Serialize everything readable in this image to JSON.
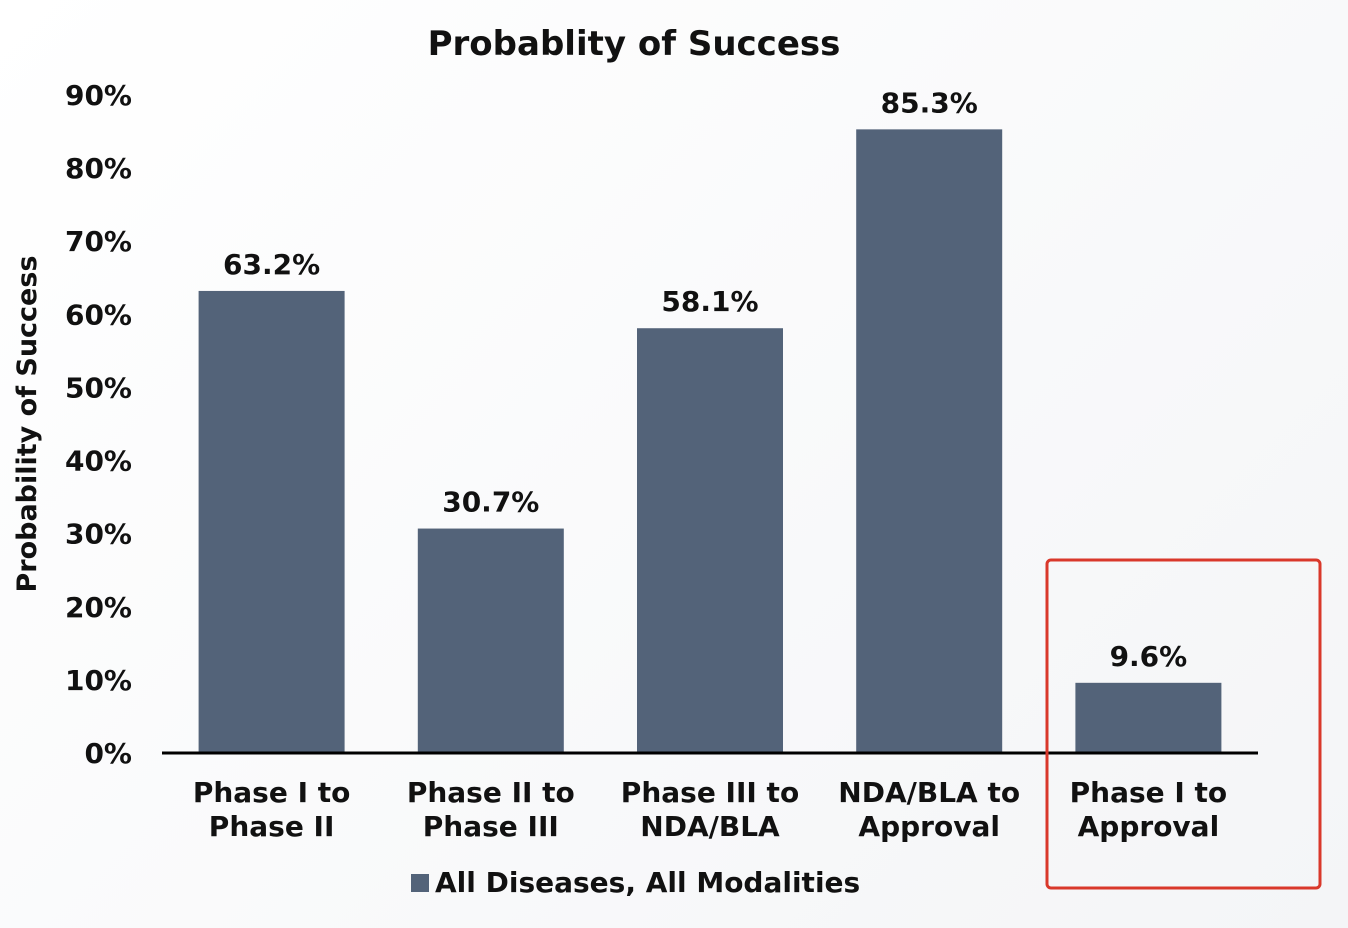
{
  "chart_data": {
    "type": "bar",
    "title": "Probablity of Success",
    "ylabel": "Probability of Success",
    "xlabel": "",
    "ylim": [
      0,
      90
    ],
    "yticks": [
      0,
      10,
      20,
      30,
      40,
      50,
      60,
      70,
      80,
      90
    ],
    "ytick_labels": [
      "0%",
      "10%",
      "20%",
      "30%",
      "40%",
      "50%",
      "60%",
      "70%",
      "80%",
      "90%"
    ],
    "categories": [
      [
        "Phase I to",
        "Phase II"
      ],
      [
        "Phase II to",
        "Phase III"
      ],
      [
        "Phase III to",
        "NDA/BLA"
      ],
      [
        "NDA/BLA to",
        "Approval"
      ],
      [
        "Phase I to",
        "Approval"
      ]
    ],
    "series": [
      {
        "name": "All Diseases, All Modalities",
        "values": [
          63.2,
          30.7,
          58.1,
          85.3,
          9.6
        ],
        "labels": [
          "63.2%",
          "30.7%",
          "58.1%",
          "85.3%",
          "9.6%"
        ],
        "color": "#536379"
      }
    ],
    "highlight": {
      "category_index": 4,
      "color": "#d9382b"
    },
    "grid": false,
    "legend": "bottom-center"
  }
}
